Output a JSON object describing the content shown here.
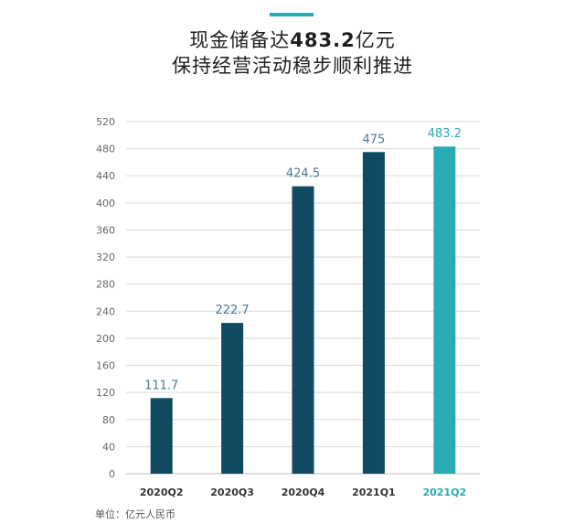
{
  "header": {
    "title_line1_prefix": "现金储备达",
    "title_line1_value": "483.2",
    "title_line1_suffix": "亿元",
    "title_line2": "保持经营活动稳步顺利推进"
  },
  "footer": {
    "unit_note": "单位：亿元人民币"
  },
  "colors": {
    "accent": "#2aaab4",
    "bar_default": "#0f4a62",
    "bar_highlight": "#2aaab4",
    "label_default": "#4a7b94",
    "label_highlight": "#2aaab4",
    "grid": "#d9d9d9",
    "axis_text": "#666666"
  },
  "chart_data": {
    "type": "bar",
    "title": "",
    "xlabel": "",
    "ylabel": "",
    "categories": [
      "2020Q2",
      "2020Q3",
      "2020Q4",
      "2021Q1",
      "2021Q2"
    ],
    "values": [
      111.7,
      222.7,
      424.5,
      475,
      483.2
    ],
    "value_labels": [
      "111.7",
      "222.7",
      "424.5",
      "475",
      "483.2"
    ],
    "highlight_index": 4,
    "ylim": [
      0,
      520
    ],
    "yticks": [
      0,
      40,
      80,
      120,
      160,
      200,
      240,
      280,
      320,
      360,
      400,
      440,
      480,
      520
    ],
    "grid": true,
    "legend": "none"
  }
}
